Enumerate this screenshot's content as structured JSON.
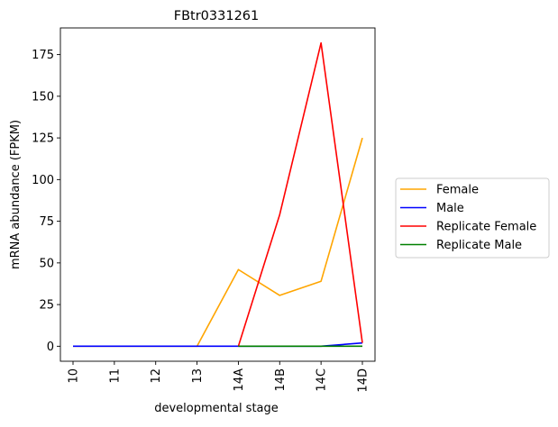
{
  "chart_data": {
    "type": "line",
    "title": "FBtr0331261",
    "xlabel": "developmental stage",
    "ylabel": "mRNA abundance (FPKM)",
    "categories": [
      "10",
      "11",
      "12",
      "13",
      "14A",
      "14B",
      "14C",
      "14D"
    ],
    "ylim": [
      -9,
      191
    ],
    "yticks": [
      0,
      25,
      50,
      75,
      100,
      125,
      150,
      175
    ],
    "grid": false,
    "legend_position": "right",
    "series": [
      {
        "name": "Female",
        "color": "#ffa500",
        "values": [
          0,
          0,
          0,
          0,
          46,
          30.5,
          39,
          125
        ]
      },
      {
        "name": "Male",
        "color": "#0000ff",
        "values": [
          0,
          0,
          0,
          0,
          0,
          0,
          0,
          2
        ]
      },
      {
        "name": "Replicate Female",
        "color": "#ff0000",
        "values": [
          null,
          null,
          null,
          null,
          0,
          79,
          182,
          2
        ]
      },
      {
        "name": "Replicate Male",
        "color": "#008000",
        "values": [
          null,
          null,
          null,
          null,
          0,
          0,
          0,
          0
        ]
      }
    ]
  }
}
